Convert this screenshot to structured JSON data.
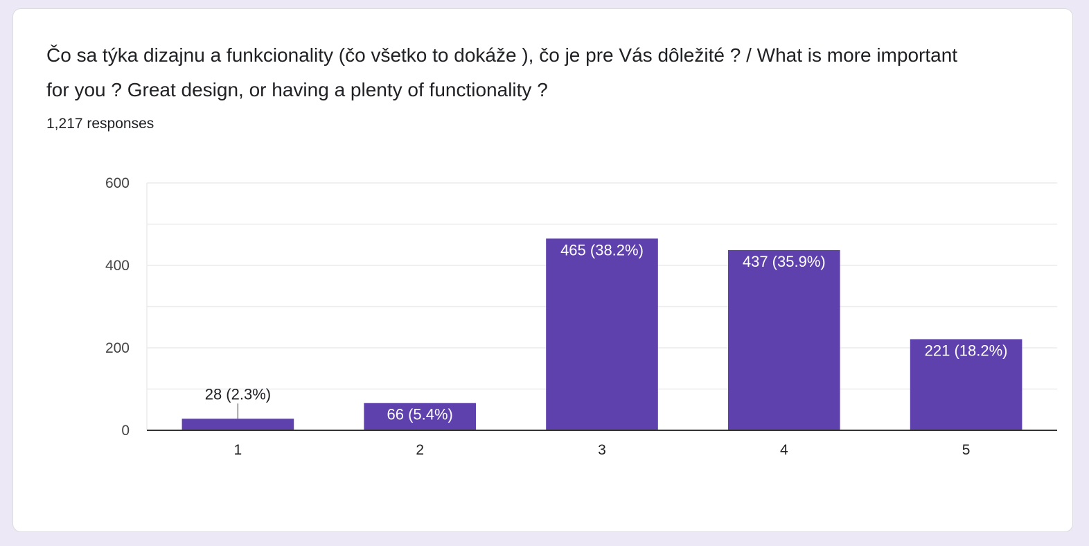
{
  "question": {
    "title": "Čo sa týka dizajnu a funkcionality (čo všetko to dokáže ), čo je pre Vás dôležité ? / What is more important for you ? Great design, or having a plenty of functionality ?",
    "responses_label": "1,217 responses"
  },
  "colors": {
    "bar": "#5e41ad",
    "bar_label_inside": "#ffffff",
    "bar_label_outside": "#202124"
  },
  "chart_data": {
    "type": "bar",
    "title": "",
    "xlabel": "",
    "ylabel": "",
    "categories": [
      "1",
      "2",
      "3",
      "4",
      "5"
    ],
    "values": [
      28,
      66,
      465,
      437,
      221
    ],
    "data_labels": [
      "28 (2.3%)",
      "66 (5.4%)",
      "465 (38.2%)",
      "437 (35.9%)",
      "221 (18.2%)"
    ],
    "ylim": [
      0,
      600
    ],
    "yticks": [
      0,
      200,
      400,
      600
    ],
    "ytick_labels": [
      "0",
      "200",
      "400",
      "600"
    ],
    "grid": true,
    "legend": "none"
  }
}
